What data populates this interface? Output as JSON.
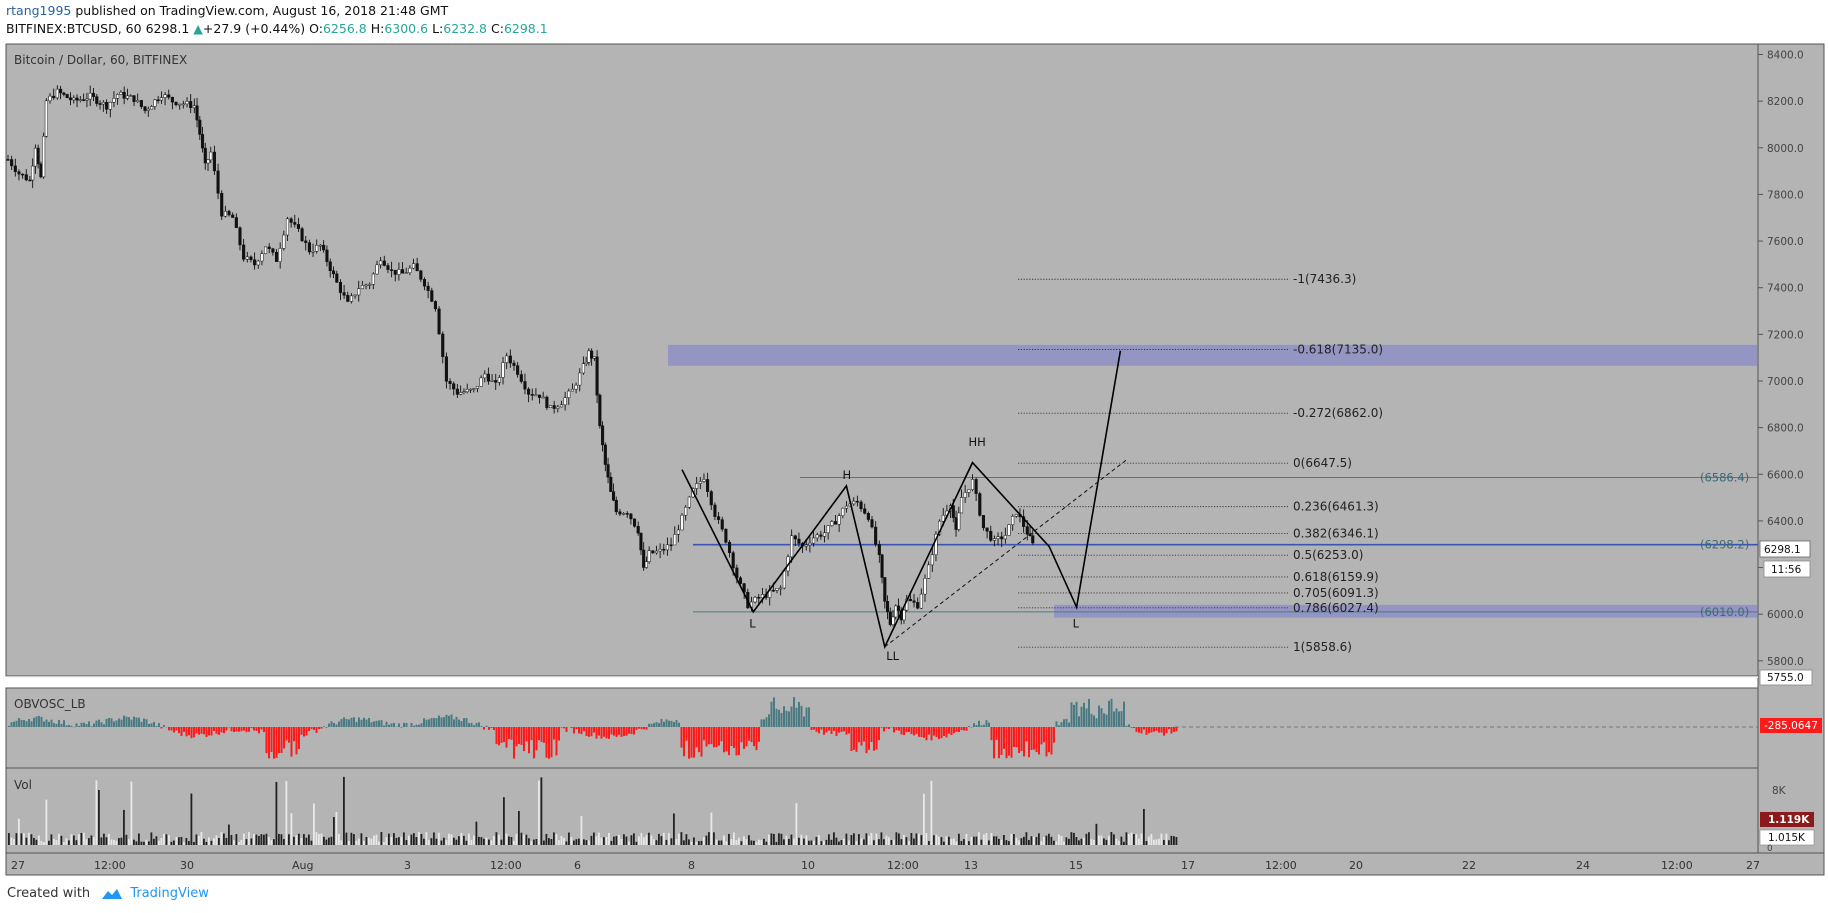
{
  "header": {
    "author": "rtang1995",
    "published_text": "published on TradingView.com, August 16, 2018 21:48 GMT",
    "symbol": "BITFINEX:BTCUSD, 60",
    "last": "6298.1",
    "change_arrow": "▲",
    "change": "+27.9 (+0.44%)",
    "o_label": "O:",
    "o": "6256.8",
    "h_label": "H:",
    "h": "6300.6",
    "l_label": "L:",
    "l": "6232.8",
    "c_label": "C:",
    "c": "6298.1"
  },
  "footer": {
    "created_with": "Created with",
    "brand": "TradingView",
    "logo_icon": "cloud-logo-icon"
  },
  "colors": {
    "pane_bg": "#b4b4b4",
    "band": "#8f8fc7",
    "obv_pos": "#4a7a82",
    "obv_neg": "#ff1a1a",
    "vol_ma": "#8b1a1a",
    "accent": "#2962a0"
  },
  "chart_data": {
    "type": "candlestick",
    "title": "Bitcoin / Dollar, 60, BITFINEX",
    "price_axis": {
      "ticks": [
        5800,
        6000,
        6200,
        6400,
        6600,
        6800,
        7000,
        7200,
        7400,
        7600,
        7800,
        8000,
        8200,
        8400
      ],
      "ylim": [
        5735,
        8445
      ]
    },
    "time_axis": {
      "labels": [
        "27",
        "12:00",
        "30",
        "Aug",
        "3",
        "12:00",
        "6",
        "8",
        "10",
        "12:00",
        "13",
        "15",
        "17",
        "12:00",
        "20",
        "22",
        "24",
        "12:00",
        "27"
      ]
    },
    "price_path": [
      [
        0,
        7950
      ],
      [
        2,
        7890
      ],
      [
        4,
        7860
      ],
      [
        5,
        8010
      ],
      [
        6,
        7870
      ],
      [
        7,
        8200
      ],
      [
        9,
        8240
      ],
      [
        12,
        8200
      ],
      [
        15,
        8220
      ],
      [
        18,
        8180
      ],
      [
        20,
        8230
      ],
      [
        23,
        8210
      ],
      [
        25,
        8160
      ],
      [
        28,
        8230
      ],
      [
        30,
        8200
      ],
      [
        32,
        8190
      ],
      [
        34,
        8180
      ],
      [
        35,
        8060
      ],
      [
        36,
        7920
      ],
      [
        37,
        7980
      ],
      [
        39,
        7720
      ],
      [
        41,
        7700
      ],
      [
        43,
        7530
      ],
      [
        45,
        7500
      ],
      [
        47,
        7580
      ],
      [
        49,
        7520
      ],
      [
        51,
        7700
      ],
      [
        53,
        7640
      ],
      [
        55,
        7560
      ],
      [
        57,
        7580
      ],
      [
        60,
        7420
      ],
      [
        62,
        7330
      ],
      [
        64,
        7400
      ],
      [
        66,
        7420
      ],
      [
        68,
        7530
      ],
      [
        70,
        7470
      ],
      [
        72,
        7460
      ],
      [
        74,
        7490
      ],
      [
        76,
        7420
      ],
      [
        78,
        7320
      ],
      [
        80,
        7000
      ],
      [
        82,
        6950
      ],
      [
        85,
        6960
      ],
      [
        87,
        7030
      ],
      [
        89,
        6980
      ],
      [
        91,
        7110
      ],
      [
        93,
        7040
      ],
      [
        95,
        6950
      ],
      [
        97,
        6940
      ],
      [
        99,
        6880
      ],
      [
        101,
        6910
      ],
      [
        103,
        6960
      ],
      [
        105,
        7060
      ],
      [
        106,
        7120
      ],
      [
        107,
        7090
      ],
      [
        108,
        6800
      ],
      [
        109,
        6640
      ],
      [
        110,
        6520
      ],
      [
        111,
        6440
      ],
      [
        113,
        6440
      ],
      [
        115,
        6360
      ],
      [
        116,
        6190
      ],
      [
        117,
        6260
      ],
      [
        119,
        6270
      ],
      [
        121,
        6300
      ],
      [
        123,
        6410
      ],
      [
        125,
        6530
      ],
      [
        127,
        6590
      ],
      [
        129,
        6430
      ],
      [
        131,
        6320
      ],
      [
        133,
        6160
      ],
      [
        135,
        6040
      ],
      [
        137,
        6070
      ],
      [
        139,
        6090
      ],
      [
        141,
        6110
      ],
      [
        143,
        6330
      ],
      [
        145,
        6290
      ],
      [
        147,
        6330
      ],
      [
        149,
        6350
      ],
      [
        151,
        6400
      ],
      [
        153,
        6470
      ],
      [
        155,
        6480
      ],
      [
        157,
        6420
      ],
      [
        159,
        6240
      ],
      [
        160,
        6050
      ],
      [
        161,
        5960
      ],
      [
        162,
        6040
      ],
      [
        163,
        5990
      ],
      [
        164,
        6060
      ],
      [
        166,
        6040
      ],
      [
        168,
        6200
      ],
      [
        170,
        6400
      ],
      [
        172,
        6480
      ],
      [
        173,
        6350
      ],
      [
        174,
        6500
      ],
      [
        176,
        6570
      ],
      [
        178,
        6370
      ],
      [
        180,
        6310
      ],
      [
        182,
        6340
      ],
      [
        184,
        6440
      ],
      [
        186,
        6350
      ],
      [
        187,
        6298
      ]
    ],
    "volume_axis": {
      "ticks": [
        "8K"
      ],
      "labels": [
        "1.119K",
        "1.015K"
      ],
      "zero": "0"
    },
    "indicators": [
      {
        "name": "OBVOSC_LB",
        "last": "-285.0647"
      },
      {
        "name": "Vol",
        "last": "1.119K",
        "ma": "1.015K"
      }
    ],
    "current_price": "6298.1",
    "countdown": "11:56",
    "pane_low": "5755.0",
    "horizontal_levels": [
      {
        "label": "(6586.4)",
        "value": 6586.4
      },
      {
        "label": "(6298.2)",
        "value": 6298.2
      },
      {
        "label": "(6010.0)",
        "value": 6010.0
      }
    ],
    "zones": [
      {
        "from": 7065,
        "to": 7155
      },
      {
        "from": 5985,
        "to": 6040
      }
    ],
    "fib_levels": [
      {
        "label": "-1(7436.3)",
        "value": 7436.3
      },
      {
        "label": "-0.618(7135.0)",
        "value": 7135.0
      },
      {
        "label": "-0.272(6862.0)",
        "value": 6862.0
      },
      {
        "label": "0(6647.5)",
        "value": 6647.5
      },
      {
        "label": "0.236(6461.3)",
        "value": 6461.3
      },
      {
        "label": "0.382(6346.1)",
        "value": 6346.1
      },
      {
        "label": "0.5(6253.0)",
        "value": 6253.0
      },
      {
        "label": "0.618(6159.9)",
        "value": 6159.9
      },
      {
        "label": "0.705(6091.3)",
        "value": 6091.3
      },
      {
        "label": "0.786(6027.4)",
        "value": 6027.4
      },
      {
        "label": "1(5858.6)",
        "value": 5858.6
      }
    ],
    "pattern_labels": [
      {
        "text": "L",
        "t": 136,
        "price": 5995
      },
      {
        "text": "H",
        "t": 153,
        "price": 6555
      },
      {
        "text": "LL",
        "t": 161,
        "price": 5855
      },
      {
        "text": "HH",
        "t": 176,
        "price": 6695
      },
      {
        "text": "L",
        "t": 195,
        "price": 5995
      }
    ],
    "zigzag": [
      [
        123,
        6620
      ],
      [
        136,
        6010
      ],
      [
        153,
        6550
      ],
      [
        160,
        5860
      ],
      [
        176,
        6650
      ],
      [
        190,
        6290
      ],
      [
        195,
        6030
      ],
      [
        203,
        7130
      ]
    ],
    "trendline": [
      [
        160,
        5860
      ],
      [
        204,
        6660
      ]
    ]
  }
}
